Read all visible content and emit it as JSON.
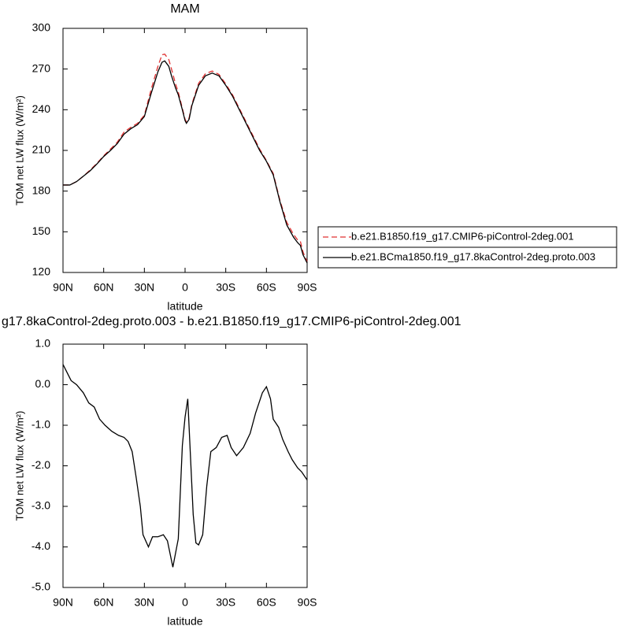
{
  "chart_data": [
    {
      "type": "line",
      "title": "MAM",
      "xlabel": "latitude",
      "ylabel": "TOM net LW flux (W/m²)",
      "x": [
        90,
        85,
        80,
        75,
        70,
        65,
        60,
        55,
        50,
        45,
        40,
        35,
        30,
        25,
        20,
        17,
        15,
        12,
        10,
        7,
        5,
        2,
        0,
        -1,
        -3,
        -5,
        -10,
        -15,
        -20,
        -25,
        -30,
        -35,
        -40,
        -45,
        -50,
        -55,
        -60,
        -65,
        -70,
        -75,
        -80,
        -83,
        -85,
        -87,
        -90
      ],
      "series": [
        {
          "name": "b.e21.B1850.f19_g17.CMIP6-piControl-2deg.001",
          "color": "#e03030",
          "dash": true,
          "values": [
            184.5,
            184.5,
            187,
            191,
            195.5,
            200.5,
            206,
            211,
            216,
            223.5,
            227,
            230,
            236,
            255,
            272,
            280.5,
            281,
            277,
            270,
            259,
            253,
            241,
            233,
            231,
            234,
            244,
            259.5,
            266.5,
            268.5,
            266,
            259,
            251,
            241,
            231,
            221,
            211,
            202.5,
            193,
            173,
            157,
            148,
            144,
            143,
            135,
            128
          ]
        },
        {
          "name": "b.e21.BCma1850.f19_g17.8kaControl-2deg.proto.003",
          "color": "#000000",
          "dash": false,
          "values": [
            184.5,
            184.5,
            187,
            191,
            195,
            200,
            205.5,
            210,
            215,
            222,
            226,
            229,
            235,
            252,
            268,
            275,
            276,
            272,
            265,
            256,
            251,
            240,
            232,
            230,
            233,
            243,
            258,
            265,
            267,
            265,
            258,
            250,
            240,
            230,
            220,
            210,
            202,
            192,
            172,
            155,
            146,
            142,
            140,
            133,
            127
          ]
        }
      ],
      "xlim": [
        90,
        -90
      ],
      "xticks": [
        {
          "value": 90,
          "label": "90N"
        },
        {
          "value": 60,
          "label": "60N"
        },
        {
          "value": 30,
          "label": "30N"
        },
        0,
        {
          "value": -30,
          "label": "30S"
        },
        {
          "value": -60,
          "label": "60S"
        },
        {
          "value": -90,
          "label": "90S"
        }
      ],
      "ylim": [
        120,
        300
      ],
      "yticks": [
        120,
        150,
        180,
        210,
        240,
        270,
        300
      ],
      "legend": "right"
    },
    {
      "type": "line",
      "title": "g17.8kaControl-2deg.proto.003 - b.e21.B1850.f19_g17.CMIP6-piControl-2deg.001",
      "xlabel": "latitude",
      "ylabel": "TOM net LW flux (W/m²)",
      "x": [
        90,
        87,
        84,
        80,
        75,
        71,
        67,
        63,
        59,
        54,
        49,
        45,
        42,
        39,
        36,
        33,
        31,
        27,
        24,
        20,
        16,
        13,
        9,
        5,
        2,
        0,
        -2,
        -6,
        -8,
        -10,
        -13,
        -16,
        -19,
        -23,
        -27,
        -31,
        -34,
        -38,
        -43,
        -48,
        -52,
        -57,
        -60,
        -63,
        -65,
        -69,
        -72,
        -76,
        -79,
        -83,
        -86,
        -90
      ],
      "values": [
        0.5,
        0.3,
        0.1,
        0,
        -0.2,
        -0.45,
        -0.55,
        -0.85,
        -1.0,
        -1.15,
        -1.25,
        -1.3,
        -1.4,
        -1.65,
        -2.3,
        -3.0,
        -3.7,
        -4.0,
        -3.75,
        -3.75,
        -3.7,
        -3.85,
        -4.5,
        -3.8,
        -1.5,
        -0.8,
        -0.35,
        -3.2,
        -3.9,
        -3.95,
        -3.7,
        -2.5,
        -1.65,
        -1.55,
        -1.3,
        -1.25,
        -1.55,
        -1.75,
        -1.55,
        -1.2,
        -0.7,
        -0.2,
        -0.05,
        -0.35,
        -0.85,
        -1.05,
        -1.35,
        -1.65,
        -1.85,
        -2.05,
        -2.15,
        -2.35
      ],
      "color": "#000000",
      "xlim": [
        90,
        -90
      ],
      "xticks": [
        {
          "value": 90,
          "label": "90N"
        },
        {
          "value": 60,
          "label": "60N"
        },
        {
          "value": 30,
          "label": "30N"
        },
        0,
        {
          "value": -30,
          "label": "30S"
        },
        {
          "value": -60,
          "label": "60S"
        },
        {
          "value": -90,
          "label": "90S"
        }
      ],
      "ylim": [
        -5,
        1
      ],
      "yticks": [
        {
          "value": -5,
          "label": "-5.0"
        },
        {
          "value": -4,
          "label": "-4.0"
        },
        {
          "value": -3,
          "label": "-3.0"
        },
        {
          "value": -2,
          "label": "-2.0"
        },
        {
          "value": -1,
          "label": "-1.0"
        },
        {
          "value": 0,
          "label": "0.0"
        },
        {
          "value": 1,
          "label": "1.0"
        }
      ]
    }
  ]
}
